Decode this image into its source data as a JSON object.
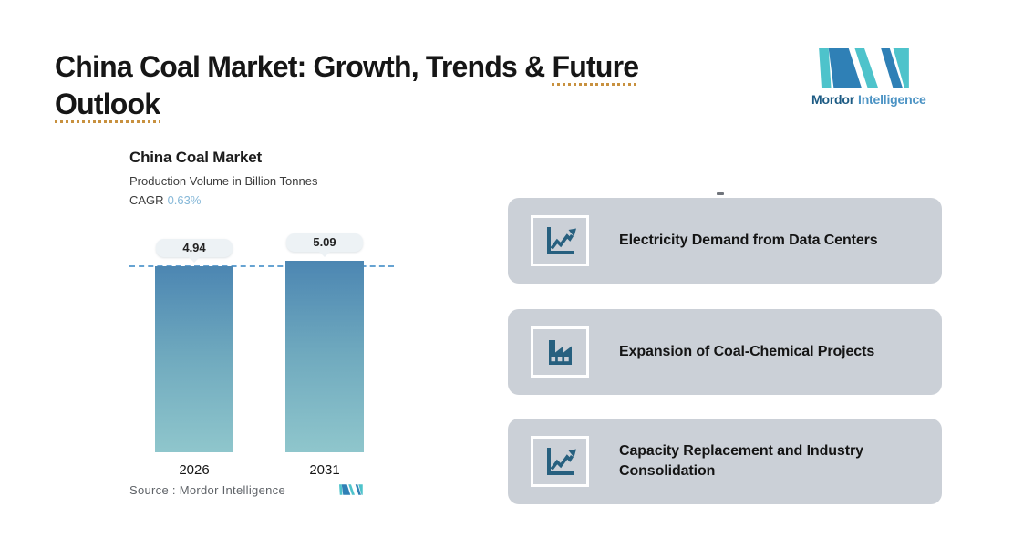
{
  "header": {
    "title_prefix": "China Coal Market: Growth, Trends & ",
    "title_underline_word": "Future",
    "title_line2_word": "Outlook"
  },
  "logo": {
    "word1": "Mordor",
    "word2": "Intelligence"
  },
  "chart": {
    "title": "China Coal Market",
    "subtitle": "Production Volume in Billion Tonnes",
    "cagr_label": "CAGR",
    "cagr_value": "0.63%",
    "source_label": "Source :  Mordor Intelligence"
  },
  "chart_data": {
    "type": "bar",
    "title": "China Coal Market",
    "ylabel": "Production Volume in Billion Tonnes",
    "categories": [
      "2026",
      "2031"
    ],
    "values": [
      4.94,
      5.09
    ],
    "data_labels": [
      "4.94",
      "5.09"
    ],
    "cagr": "0.63%",
    "reference_line": 4.94,
    "ylim": [
      0,
      5.8
    ],
    "grid": false,
    "legend": "none",
    "bar_gradient": [
      "#4C86B2",
      "#8FC6CC"
    ]
  },
  "cards": [
    {
      "icon": "line-chart-icon",
      "title": "Electricity Demand from Data Centers"
    },
    {
      "icon": "factory-icon",
      "title": "Expansion of Coal-Chemical Projects"
    },
    {
      "icon": "line-chart-icon",
      "title": "Capacity Replacement and Industry Consolidation"
    }
  ],
  "colors": {
    "brand_teal": "#4EC3CB",
    "brand_blue": "#2F80B6",
    "icon_dark_blue": "#27607F",
    "card_background": "#CBD0D7",
    "dashed_line": "#66A3D2",
    "cagr_accent": "#86B8D8",
    "title_underline": "#C8913F",
    "tooltip_background": "#EDF2F5"
  }
}
